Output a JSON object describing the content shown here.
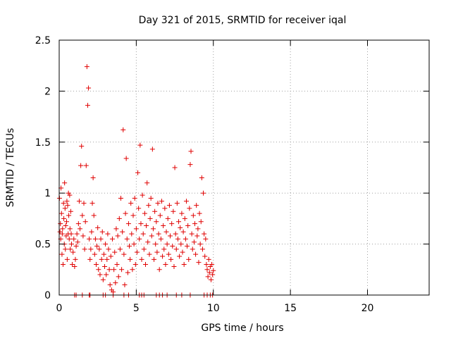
{
  "chart_data": {
    "type": "scatter",
    "title": "Day 321 of 2015, SRMTID for receiver iqal",
    "xlabel": "GPS time / hours",
    "ylabel": "SRMTID / TECUs",
    "xlim": [
      0,
      24
    ],
    "ylim": [
      0,
      2.5
    ],
    "xticks": [
      0,
      5,
      10,
      15,
      20
    ],
    "xtick_labels": [
      "0",
      "5",
      "10",
      "15",
      "20"
    ],
    "yticks": [
      0,
      0.5,
      1,
      1.5,
      2,
      2.5
    ],
    "ytick_labels": [
      "0",
      "0.5",
      "1",
      "1.5",
      "2",
      "2.5"
    ],
    "grid": true,
    "marker": "+",
    "colors": {
      "points": "#e00000",
      "grid": "#a0a0a0",
      "axis": "#000000"
    },
    "series": [
      {
        "name": "SRMTID",
        "x": [
          0.02,
          0.05,
          0.08,
          0.1,
          0.12,
          0.15,
          0.18,
          0.2,
          0.22,
          0.25,
          0.28,
          0.3,
          0.33,
          0.35,
          0.38,
          0.4,
          0.42,
          0.45,
          0.48,
          0.5,
          0.52,
          0.55,
          0.58,
          0.6,
          0.62,
          0.65,
          0.68,
          0.7,
          0.72,
          0.75,
          0.78,
          0.8,
          0.85,
          0.9,
          0.95,
          1.0,
          1.05,
          1.1,
          1.15,
          1.2,
          1.25,
          1.3,
          1.35,
          1.4,
          1.45,
          1.5,
          1.55,
          1.6,
          1.65,
          1.7,
          1.75,
          1.8,
          1.85,
          1.9,
          1.95,
          2.0,
          2.05,
          2.1,
          2.15,
          2.2,
          2.25,
          2.3,
          2.35,
          2.4,
          2.45,
          2.5,
          2.55,
          2.6,
          2.65,
          2.7,
          2.75,
          2.8,
          2.85,
          2.9,
          2.95,
          3.0,
          3.05,
          3.1,
          3.15,
          3.2,
          3.25,
          3.3,
          3.35,
          3.4,
          3.45,
          3.5,
          3.55,
          3.6,
          3.65,
          3.7,
          3.75,
          3.8,
          3.85,
          3.9,
          3.95,
          4.0,
          4.05,
          4.1,
          4.15,
          4.2,
          4.25,
          4.3,
          4.35,
          4.4,
          4.45,
          4.5,
          4.55,
          4.6,
          4.65,
          4.7,
          4.75,
          4.8,
          4.85,
          4.9,
          4.95,
          5.0,
          5.05,
          5.1,
          5.15,
          5.2,
          5.25,
          5.3,
          5.35,
          5.4,
          5.45,
          5.5,
          5.55,
          5.6,
          5.65,
          5.7,
          5.75,
          5.8,
          5.85,
          5.9,
          5.95,
          6.0,
          6.05,
          6.1,
          6.15,
          6.2,
          6.25,
          6.3,
          6.35,
          6.4,
          6.45,
          6.5,
          6.55,
          6.6,
          6.65,
          6.7,
          6.75,
          6.8,
          6.85,
          6.9,
          6.95,
          7.0,
          7.05,
          7.1,
          7.15,
          7.2,
          7.25,
          7.3,
          7.35,
          7.4,
          7.45,
          7.5,
          7.55,
          7.6,
          7.65,
          7.7,
          7.75,
          7.8,
          7.85,
          7.9,
          7.95,
          8.0,
          8.05,
          8.1,
          8.15,
          8.2,
          8.25,
          8.3,
          8.35,
          8.4,
          8.45,
          8.5,
          8.55,
          8.6,
          8.65,
          8.7,
          8.75,
          8.8,
          8.85,
          8.9,
          8.95,
          9.0,
          9.05,
          9.1,
          9.15,
          9.2,
          9.25,
          9.3,
          9.35,
          9.4,
          9.45,
          9.5,
          9.55,
          9.6,
          9.65,
          9.7,
          9.75,
          9.8,
          9.85,
          9.9,
          9.95,
          10.0,
          1.0,
          1.1,
          1.5,
          1.95,
          2.0,
          2.85,
          3.0,
          3.5,
          4.2,
          4.5,
          5.2,
          5.35,
          5.5,
          6.3,
          6.5,
          6.7,
          7.0,
          7.6,
          7.95,
          8.5,
          9.4,
          9.6,
          9.8,
          9.95
        ],
        "y": [
          0.95,
          0.62,
          0.7,
          0.55,
          1.05,
          0.8,
          0.4,
          0.6,
          0.65,
          0.3,
          0.9,
          0.75,
          0.5,
          1.1,
          0.85,
          0.45,
          0.68,
          0.58,
          0.72,
          0.92,
          0.35,
          0.88,
          0.6,
          1.0,
          0.78,
          0.55,
          0.98,
          0.65,
          0.45,
          0.82,
          0.6,
          0.5,
          0.3,
          0.42,
          0.55,
          0.28,
          0.35,
          0.48,
          0.6,
          0.52,
          0.7,
          0.92,
          0.65,
          1.27,
          1.46,
          0.78,
          0.58,
          0.9,
          0.45,
          0.72,
          1.27,
          2.24,
          1.86,
          2.03,
          0.55,
          0.35,
          0.45,
          0.62,
          0.9,
          1.15,
          0.78,
          0.4,
          0.55,
          0.3,
          0.48,
          0.66,
          0.25,
          0.45,
          0.2,
          0.55,
          0.35,
          0.62,
          0.15,
          0.4,
          0.28,
          0.5,
          0.2,
          0.35,
          0.6,
          0.45,
          0.25,
          0.1,
          0.38,
          0.05,
          0.55,
          0.03,
          0.25,
          0.42,
          0.12,
          0.65,
          0.3,
          0.58,
          0.18,
          0.75,
          0.45,
          0.95,
          0.25,
          0.62,
          1.62,
          0.4,
          0.1,
          0.8,
          1.34,
          0.55,
          0.22,
          0.7,
          0.48,
          0.35,
          0.9,
          0.6,
          0.25,
          0.78,
          0.5,
          0.95,
          0.3,
          0.65,
          0.42,
          1.2,
          0.85,
          0.55,
          1.47,
          0.7,
          0.35,
          0.98,
          0.6,
          0.45,
          0.8,
          0.3,
          0.68,
          1.1,
          0.52,
          0.88,
          0.4,
          0.75,
          0.95,
          0.58,
          1.43,
          0.65,
          0.35,
          0.82,
          0.5,
          0.72,
          0.42,
          0.9,
          0.6,
          0.25,
          0.78,
          0.55,
          0.92,
          0.38,
          0.68,
          0.45,
          0.85,
          0.3,
          0.62,
          0.5,
          0.75,
          0.4,
          0.88,
          0.58,
          0.35,
          0.7,
          0.48,
          0.82,
          0.28,
          1.25,
          0.6,
          0.45,
          0.9,
          0.55,
          0.72,
          0.38,
          0.66,
          0.5,
          0.8,
          0.42,
          0.62,
          0.3,
          0.75,
          0.55,
          0.92,
          0.48,
          0.68,
          0.35,
          0.85,
          1.28,
          1.41,
          0.6,
          0.45,
          0.78,
          0.52,
          0.7,
          0.4,
          0.88,
          0.58,
          0.65,
          0.32,
          0.8,
          0.5,
          0.72,
          1.15,
          0.45,
          1.0,
          0.6,
          0.38,
          0.55,
          0.3,
          0.25,
          0.18,
          0.35,
          0.22,
          0.28,
          0.15,
          0.3,
          0.2,
          0.24,
          0.0,
          0.0,
          0.0,
          0.0,
          0.0,
          0.0,
          0.0,
          0.0,
          0.0,
          0.0,
          0.0,
          0.0,
          0.0,
          0.0,
          0.0,
          0.0,
          0.0,
          0.0,
          0.0,
          0.0,
          0.0,
          0.0,
          0.0,
          0.0
        ]
      }
    ]
  }
}
